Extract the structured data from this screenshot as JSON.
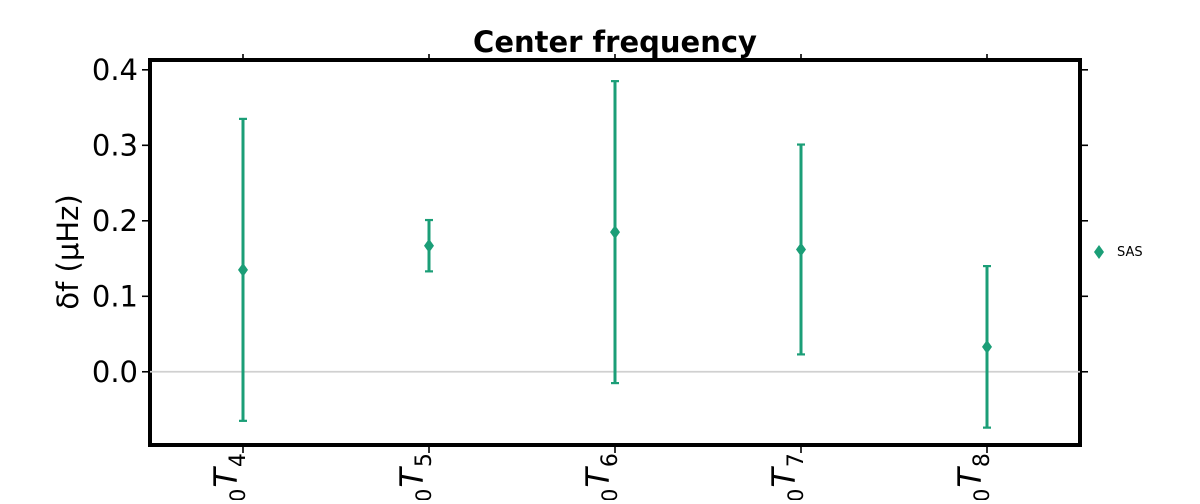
{
  "chart_data": {
    "type": "scatter",
    "title": "Center frequency",
    "xlabel": "",
    "ylabel": "δf (μHz)",
    "categories": [
      {
        "base": "0",
        "letter": "T",
        "sub": "4"
      },
      {
        "base": "0",
        "letter": "T",
        "sub": "5"
      },
      {
        "base": "0",
        "letter": "T",
        "sub": "6"
      },
      {
        "base": "0",
        "letter": "T",
        "sub": "7"
      },
      {
        "base": "0",
        "letter": "T",
        "sub": "8"
      }
    ],
    "series": [
      {
        "name": "SAS",
        "color": "#1b9e77",
        "marker": "diamond",
        "values": [
          0.135,
          0.167,
          0.185,
          0.162,
          0.033
        ],
        "errors": [
          0.2,
          0.034,
          0.2,
          0.139,
          0.107
        ]
      }
    ],
    "ylim": [
      -0.097,
      0.413
    ],
    "yticks": [
      {
        "value": 0.0,
        "label": "0.0"
      },
      {
        "value": 0.1,
        "label": "0.1"
      },
      {
        "value": 0.2,
        "label": "0.2"
      },
      {
        "value": 0.3,
        "label": "0.3"
      },
      {
        "value": 0.4,
        "label": "0.4"
      }
    ],
    "reference_line": 0,
    "legend_position": "right",
    "grid": false
  }
}
